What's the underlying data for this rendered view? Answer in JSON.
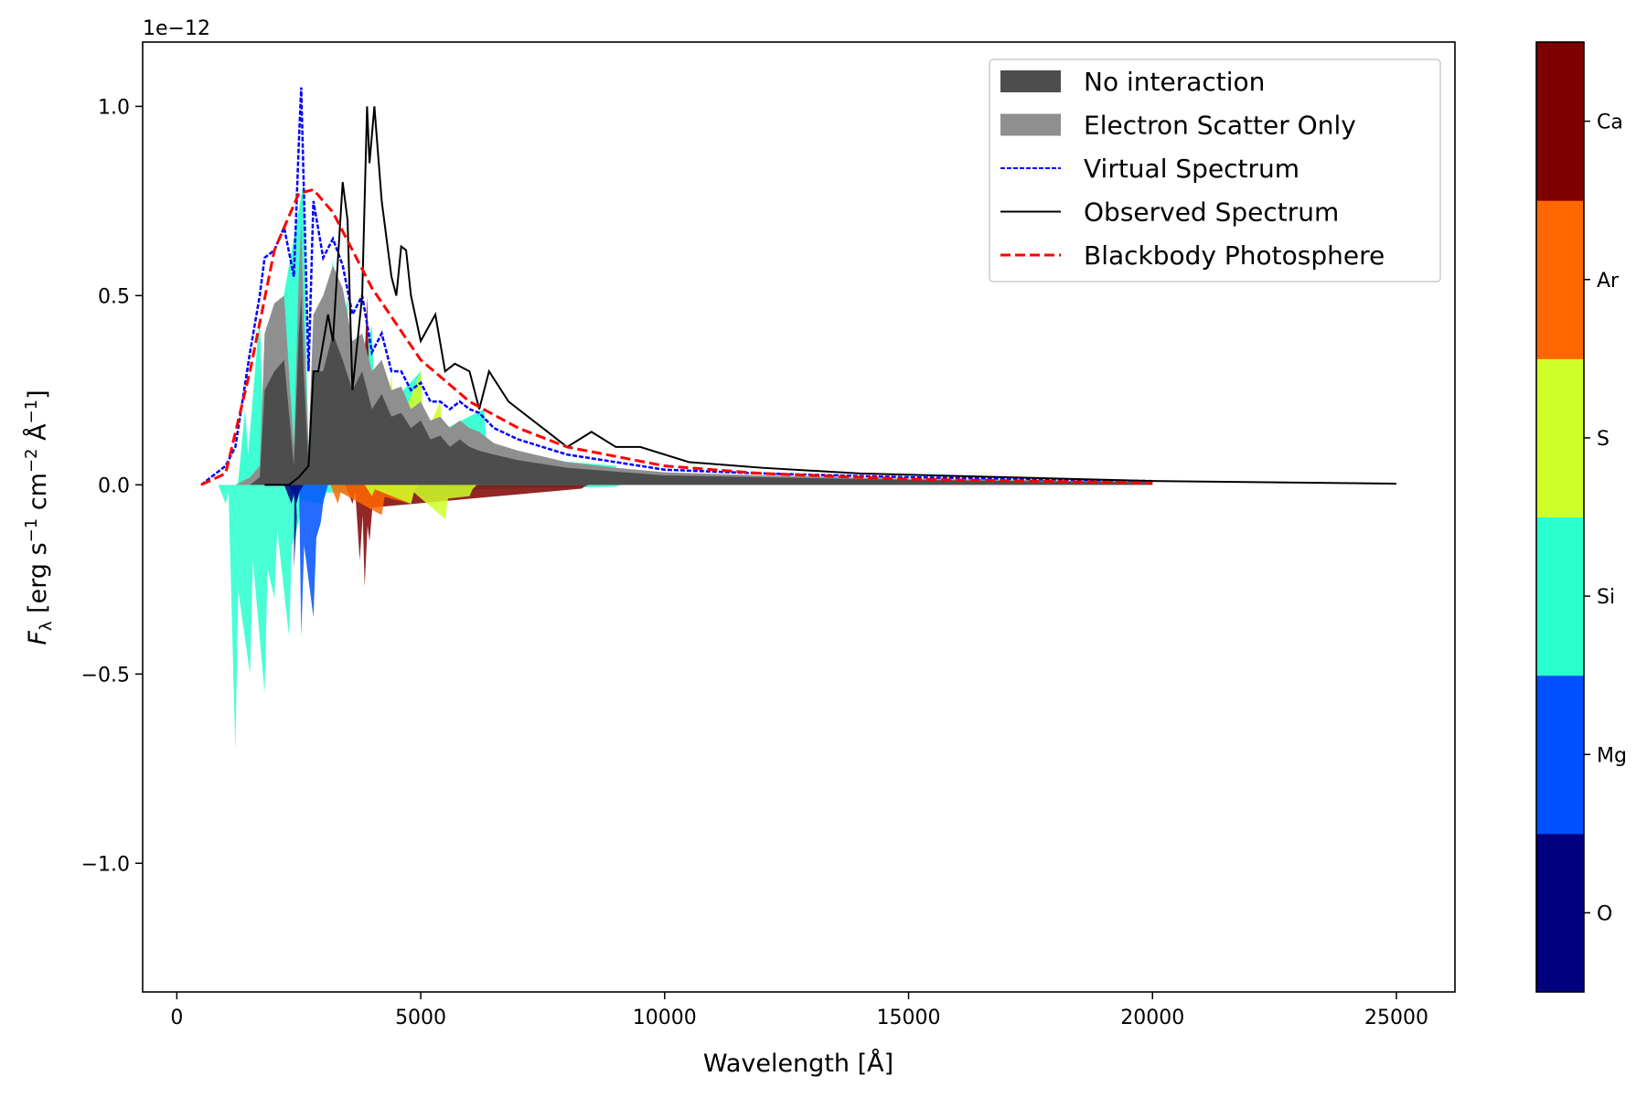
{
  "chart_data": {
    "type": "area",
    "title": "",
    "xlabel": "Wavelength [Å]",
    "ylabel": "F_λ [erg s⁻¹ cm⁻² Å⁻¹]",
    "ylabel_parts": {
      "f": "F",
      "sub": "λ",
      "p1": " [erg s",
      "e1": "−1",
      "p2": " cm",
      "e2": "−2",
      "p3": " Å",
      "e3": "−1",
      "p4": "]"
    },
    "y_offset_label": "1e−12",
    "xlim": [
      -700,
      26200
    ],
    "ylim": [
      -1.34,
      1.17
    ],
    "xticks": [
      0,
      5000,
      10000,
      15000,
      20000,
      25000
    ],
    "xtick_labels": [
      "0",
      "5000",
      "10000",
      "15000",
      "20000",
      "25000"
    ],
    "yticks": [
      -1.0,
      -0.5,
      0.0,
      0.5,
      1.0
    ],
    "ytick_labels": [
      "−1.0",
      "−0.5",
      "0.0",
      "0.5",
      "1.0"
    ],
    "grid": false,
    "legend_position": "top-right",
    "legend": [
      {
        "label": "No interaction",
        "kind": "patch",
        "color": "#4d4d4d"
      },
      {
        "label": "Electron Scatter Only",
        "kind": "patch",
        "color": "#8f8f8f"
      },
      {
        "label": "Virtual Spectrum",
        "kind": "dashed-fine",
        "color": "#0000ff"
      },
      {
        "label": "Observed Spectrum",
        "kind": "line",
        "color": "#000000"
      },
      {
        "label": "Blackbody Photosphere",
        "kind": "dashed",
        "color": "#ff0000"
      }
    ],
    "x_grid": [
      500,
      1000,
      1200,
      1500,
      1700,
      1800,
      2000,
      2200,
      2400,
      2500,
      2550,
      2600,
      2700,
      2800,
      3000,
      3200,
      3400,
      3600,
      3800,
      4000,
      4200,
      4400,
      4600,
      4800,
      5000,
      5200,
      5400,
      5600,
      5800,
      6000,
      6200,
      6500,
      7000,
      7500,
      8000,
      9000,
      10000,
      12000,
      15000,
      20000
    ],
    "series": [
      {
        "name": "No interaction",
        "values": [
          0,
          0,
          0,
          0,
          0.02,
          0.25,
          0.3,
          0.33,
          0.05,
          0.4,
          0.5,
          0.3,
          0.05,
          0.3,
          0.3,
          0.4,
          0.33,
          0.25,
          0.3,
          0.2,
          0.24,
          0.18,
          0.19,
          0.15,
          0.17,
          0.12,
          0.13,
          0.1,
          0.12,
          0.1,
          0.09,
          0.08,
          0.065,
          0.055,
          0.045,
          0.035,
          0.025,
          0.02,
          0.013,
          0.006
        ]
      },
      {
        "name": "Electron Scatter Only",
        "values": [
          0,
          0,
          0,
          0.02,
          0.05,
          0.4,
          0.48,
          0.5,
          0.1,
          0.55,
          0.7,
          0.45,
          0.1,
          0.45,
          0.5,
          0.58,
          0.52,
          0.38,
          0.4,
          0.3,
          0.33,
          0.25,
          0.26,
          0.2,
          0.22,
          0.17,
          0.18,
          0.15,
          0.17,
          0.15,
          0.14,
          0.11,
          0.09,
          0.075,
          0.06,
          0.045,
          0.033,
          0.025,
          0.016,
          0.008
        ]
      },
      {
        "name": "Virtual Spectrum",
        "values": [
          0,
          0.05,
          0.1,
          0.35,
          0.5,
          0.6,
          0.62,
          0.68,
          0.55,
          0.9,
          1.05,
          0.8,
          0.3,
          0.75,
          0.6,
          0.65,
          0.58,
          0.45,
          0.5,
          0.35,
          0.4,
          0.3,
          0.3,
          0.25,
          0.27,
          0.22,
          0.22,
          0.2,
          0.22,
          0.2,
          0.19,
          0.15,
          0.12,
          0.1,
          0.08,
          0.06,
          0.04,
          0.03,
          0.02,
          0.01
        ]
      },
      {
        "name": "Observed Spectrum",
        "x": [
          1800,
          2300,
          2500,
          2700,
          2800,
          2900,
          3100,
          3200,
          3400,
          3500,
          3600,
          3800,
          3900,
          3950,
          4050,
          4200,
          4400,
          4500,
          4600,
          4700,
          4800,
          5000,
          5300,
          5500,
          5700,
          6000,
          6200,
          6400,
          6800,
          7500,
          8000,
          8500,
          9000,
          9500,
          10500,
          12000,
          14000,
          20000,
          25000
        ],
        "values": [
          0,
          0,
          0.02,
          0.05,
          0.3,
          0.3,
          0.45,
          0.38,
          0.8,
          0.7,
          0.25,
          0.5,
          1.0,
          0.85,
          1.0,
          0.75,
          0.55,
          0.5,
          0.63,
          0.62,
          0.5,
          0.38,
          0.45,
          0.3,
          0.32,
          0.3,
          0.2,
          0.3,
          0.22,
          0.15,
          0.1,
          0.14,
          0.1,
          0.1,
          0.06,
          0.045,
          0.03,
          0.01,
          0.003
        ]
      },
      {
        "name": "Blackbody Photosphere",
        "x": [
          500,
          1000,
          1500,
          2000,
          2500,
          2800,
          3200,
          3600,
          4000,
          5000,
          6000,
          7000,
          8000,
          10000,
          12000,
          15000,
          20000
        ],
        "values": [
          0,
          0.03,
          0.3,
          0.62,
          0.77,
          0.78,
          0.72,
          0.62,
          0.52,
          0.33,
          0.22,
          0.15,
          0.1,
          0.05,
          0.03,
          0.015,
          0.005
        ]
      }
    ],
    "element_contributions": [
      {
        "element": "Si",
        "color": "#29ffce",
        "emission": [
          [
            1400,
            0.2
          ],
          [
            1700,
            0.45
          ],
          [
            2600,
            0.8
          ],
          [
            2700,
            0.1
          ],
          [
            3200,
            0.6
          ],
          [
            3500,
            0.5
          ],
          [
            4000,
            0.42
          ],
          [
            5000,
            0.3
          ],
          [
            6300,
            0.2
          ],
          [
            9000,
            0.05
          ]
        ],
        "absorption": [
          [
            1000,
            -0.05
          ],
          [
            1200,
            -0.7
          ],
          [
            1500,
            -0.5
          ],
          [
            1800,
            -0.55
          ],
          [
            2000,
            -0.3
          ],
          [
            2300,
            -0.4
          ],
          [
            2500,
            -0.1
          ],
          [
            3000,
            -0.05
          ],
          [
            6000,
            -0.03
          ],
          [
            9000,
            -0.005
          ]
        ]
      },
      {
        "element": "Mg",
        "color": "#0050ff",
        "emission": [],
        "absorption": [
          [
            2450,
            -0.05
          ],
          [
            2550,
            -0.4
          ],
          [
            2800,
            -0.35
          ],
          [
            2950,
            -0.1
          ]
        ]
      },
      {
        "element": "O",
        "color": "#000080",
        "emission": [],
        "absorption": [
          [
            2350,
            -0.05
          ],
          [
            2400,
            -0.22
          ],
          [
            2450,
            -0.05
          ]
        ]
      },
      {
        "element": "Ca",
        "color": "#800000",
        "emission": [
          [
            3900,
            0.5
          ]
        ],
        "absorption": [
          [
            3600,
            -0.05
          ],
          [
            3750,
            -0.2
          ],
          [
            3850,
            -0.27
          ],
          [
            3950,
            -0.15
          ],
          [
            8300,
            -0.01
          ]
        ]
      },
      {
        "element": "Ar",
        "color": "#ff6800",
        "emission": [],
        "absorption": [
          [
            3300,
            -0.05
          ],
          [
            4200,
            -0.08
          ],
          [
            4800,
            -0.05
          ]
        ]
      },
      {
        "element": "S",
        "color": "#ceff29",
        "emission": [
          [
            4400,
            0.3
          ],
          [
            5000,
            0.3
          ],
          [
            5400,
            0.22
          ]
        ],
        "absorption": [
          [
            4000,
            -0.03
          ],
          [
            4800,
            -0.05
          ],
          [
            5500,
            -0.09
          ],
          [
            6000,
            -0.03
          ]
        ]
      }
    ],
    "colorbar": {
      "labels": [
        "O",
        "Mg",
        "Si",
        "S",
        "Ar",
        "Ca"
      ],
      "colors": [
        "#000080",
        "#0050ff",
        "#29ffce",
        "#ceff29",
        "#ff6800",
        "#800000"
      ]
    }
  }
}
